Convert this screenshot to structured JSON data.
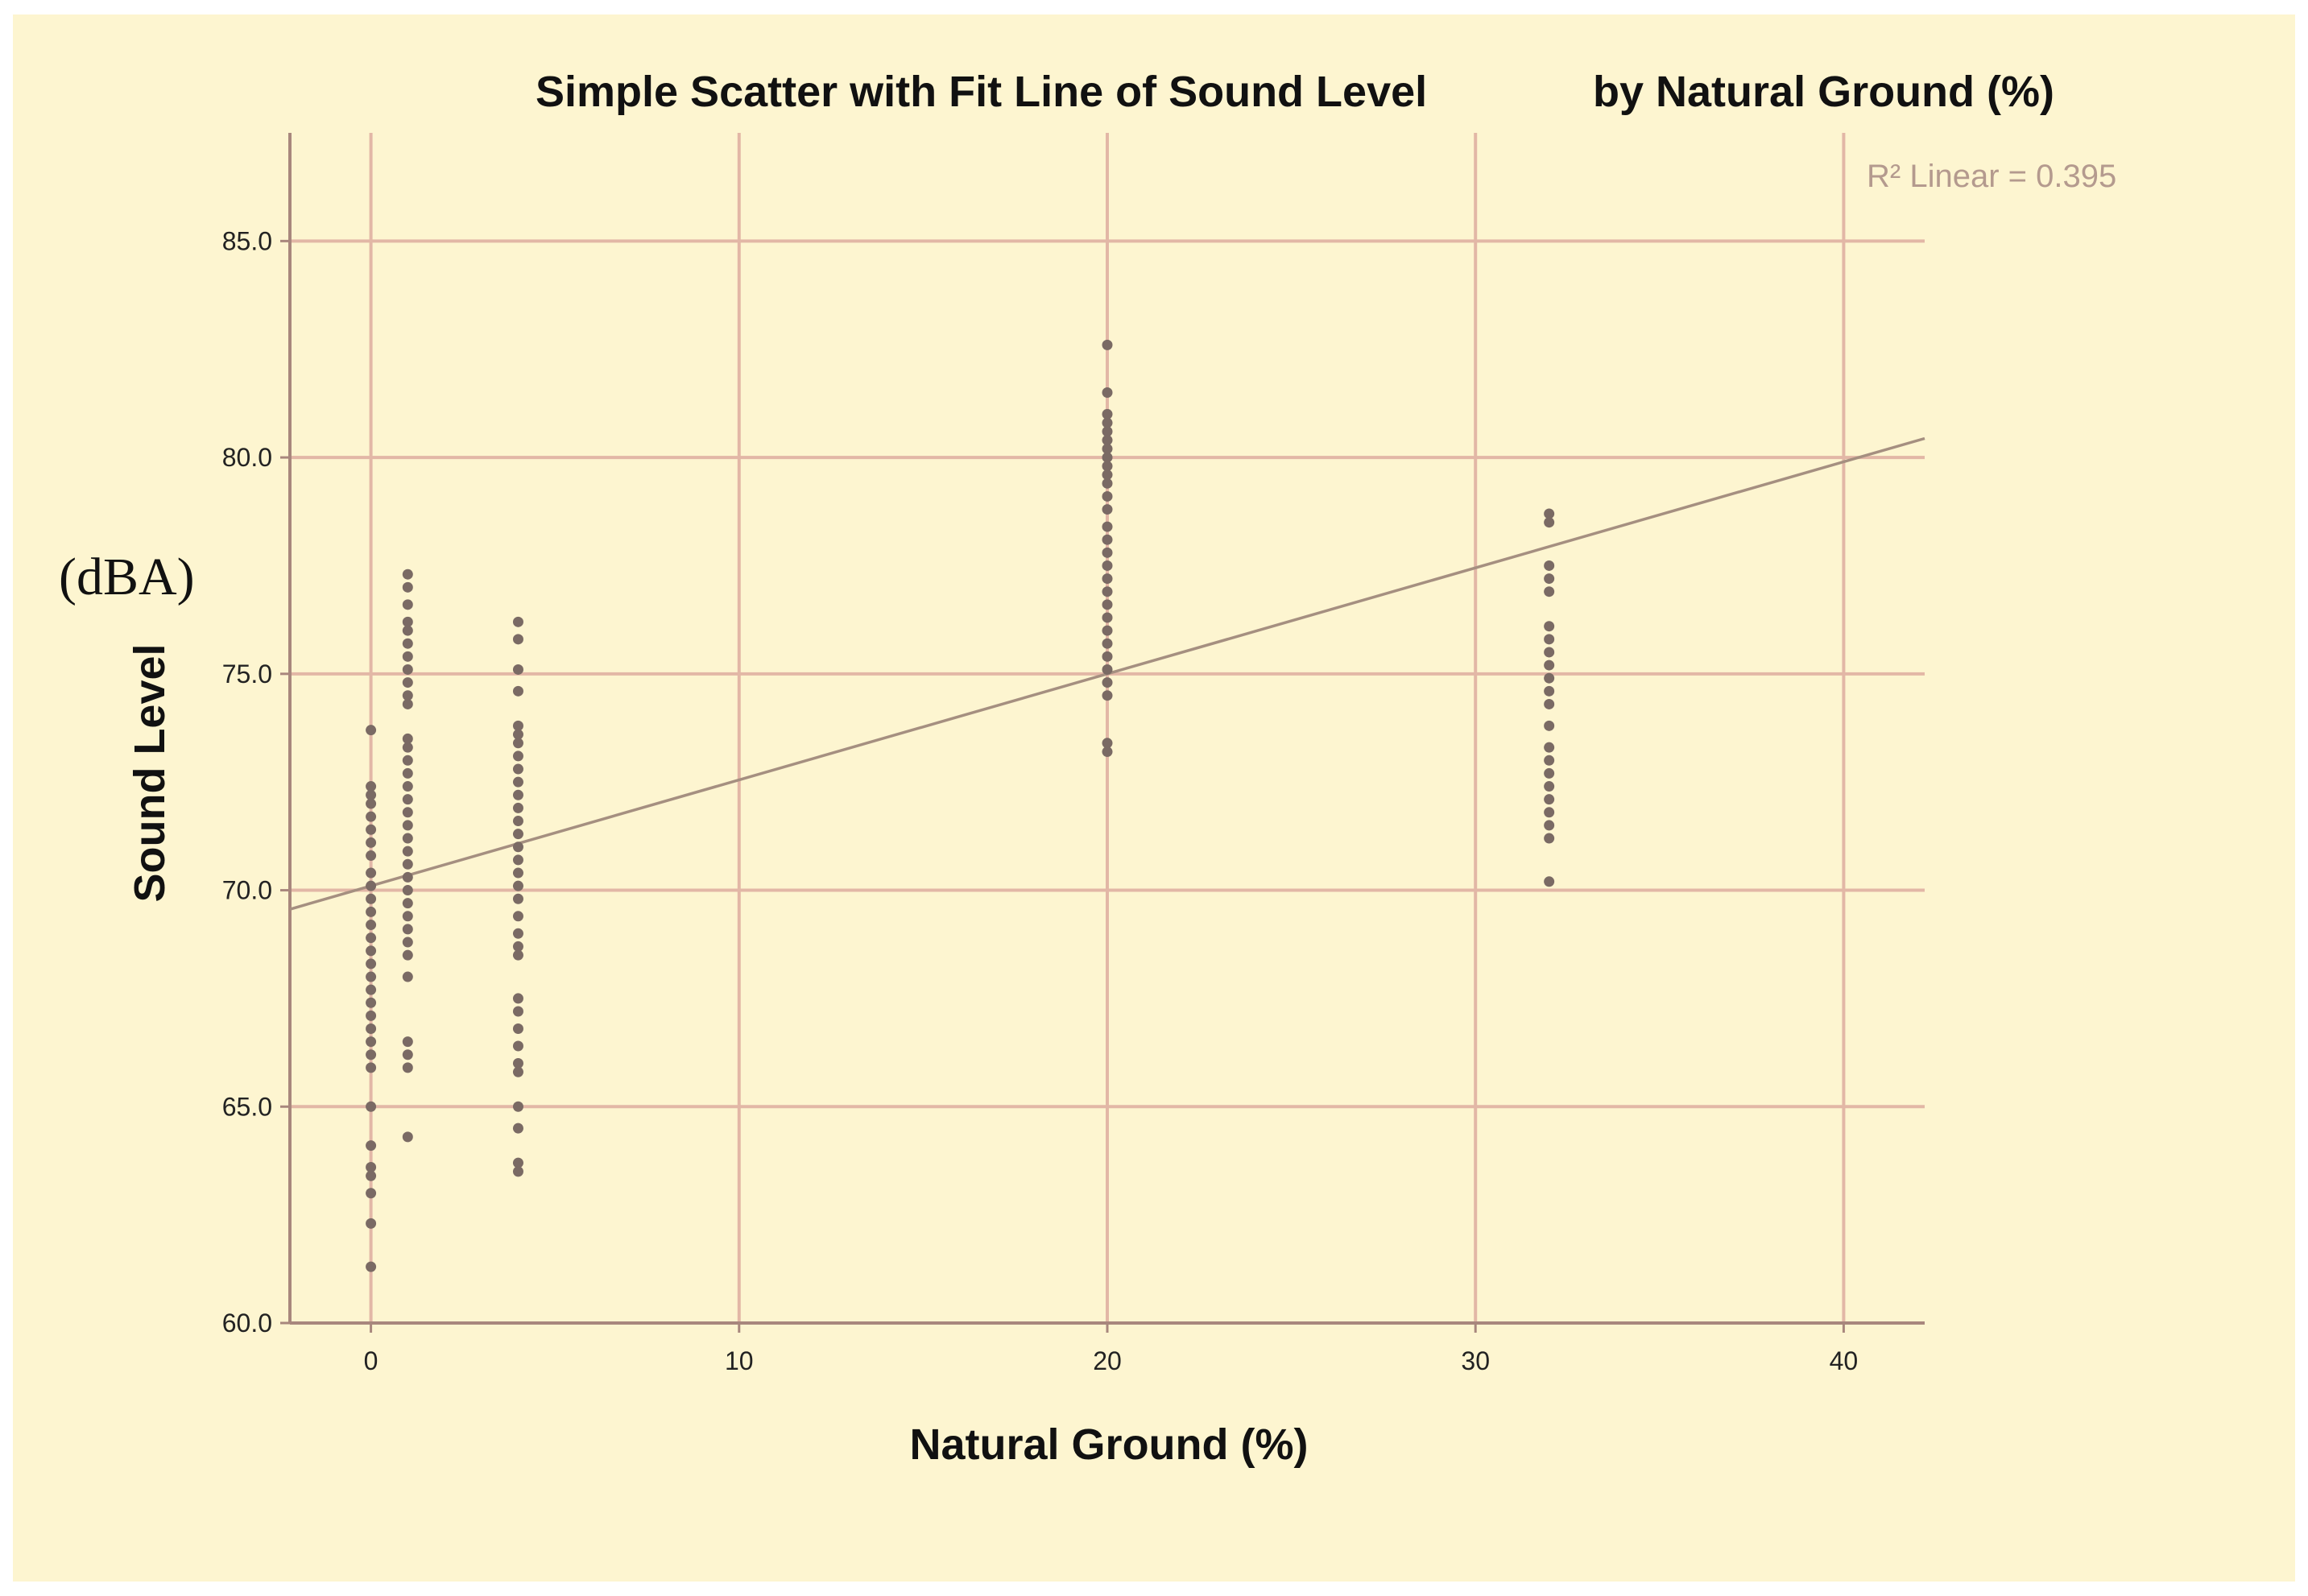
{
  "chart_data": {
    "type": "scatter",
    "title_parts": [
      "Simple Scatter with Fit Line of Sound Level",
      "by Natural Ground (%)"
    ],
    "xlabel": "Natural Ground (%)",
    "ylabel": "Sound Level",
    "unit_annotation": "(dBA)",
    "r2_label": "R² Linear = 0.395",
    "xlim": [
      -2.2,
      42.2
    ],
    "ylim": [
      60,
      87.5
    ],
    "xticks": [
      0,
      10,
      20,
      30,
      40
    ],
    "yticks": [
      60,
      65,
      70,
      75,
      80,
      85
    ],
    "xtick_labels": [
      "0",
      "10",
      "20",
      "30",
      "40"
    ],
    "ytick_labels": [
      "60.0",
      "65.0",
      "70.0",
      "75.0",
      "80.0",
      "85.0"
    ],
    "grid": true,
    "fit_line": {
      "intercept": 70.1,
      "slope": 0.245
    },
    "series": [
      {
        "x": 0,
        "y": [
          73.7,
          72.4,
          72.2,
          72.0,
          71.7,
          71.4,
          71.1,
          70.8,
          70.4,
          70.1,
          69.8,
          69.5,
          69.2,
          68.9,
          68.6,
          68.3,
          68.0,
          67.7,
          67.4,
          67.1,
          66.8,
          66.5,
          66.2,
          65.9,
          65.0,
          64.1,
          63.6,
          63.4,
          63.0,
          62.3,
          61.3
        ]
      },
      {
        "x": 1,
        "y": [
          77.3,
          77.0,
          76.6,
          76.2,
          76.0,
          75.7,
          75.4,
          75.1,
          74.8,
          74.5,
          74.3,
          73.5,
          73.3,
          73.0,
          72.7,
          72.4,
          72.1,
          71.8,
          71.5,
          71.2,
          70.9,
          70.6,
          70.3,
          70.0,
          69.7,
          69.4,
          69.1,
          68.8,
          68.5,
          68.0,
          66.5,
          66.2,
          65.9,
          64.3
        ]
      },
      {
        "x": 4,
        "y": [
          76.2,
          75.8,
          75.1,
          74.6,
          73.8,
          73.6,
          73.4,
          73.1,
          72.8,
          72.5,
          72.2,
          71.9,
          71.6,
          71.3,
          71.0,
          70.7,
          70.4,
          70.1,
          69.8,
          69.4,
          69.0,
          68.7,
          68.5,
          67.5,
          67.2,
          66.8,
          66.4,
          66.0,
          65.8,
          65.0,
          64.5,
          63.7,
          63.5
        ]
      },
      {
        "x": 20,
        "y": [
          82.6,
          81.5,
          81.0,
          80.8,
          80.6,
          80.4,
          80.2,
          80.0,
          79.8,
          79.6,
          79.4,
          79.1,
          78.8,
          78.4,
          78.1,
          77.8,
          77.5,
          77.2,
          76.9,
          76.6,
          76.3,
          76.0,
          75.7,
          75.4,
          75.1,
          74.8,
          74.5,
          73.4,
          73.2
        ]
      },
      {
        "x": 32,
        "y": [
          78.7,
          78.5,
          77.5,
          77.2,
          76.9,
          76.1,
          75.8,
          75.5,
          75.2,
          74.9,
          74.6,
          74.3,
          73.8,
          73.3,
          73.0,
          72.7,
          72.4,
          72.1,
          71.8,
          71.5,
          71.2,
          70.2
        ]
      }
    ]
  }
}
